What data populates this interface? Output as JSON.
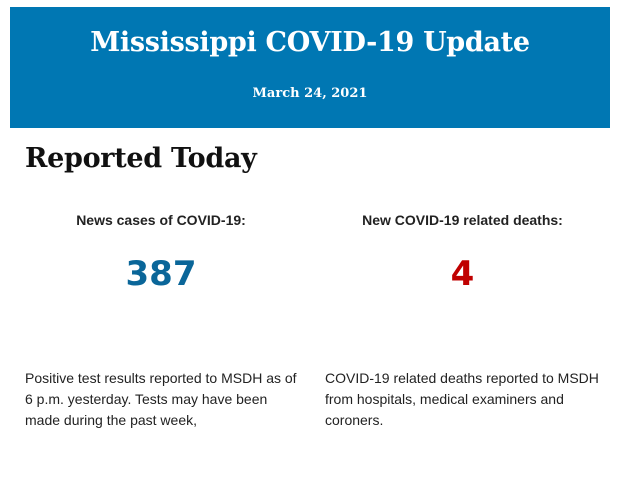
{
  "header": {
    "title": "Mississippi COVID-19 Update",
    "date": "March 24, 2021",
    "background": "#0077b3"
  },
  "section_title": "Reported Today",
  "cases": {
    "label": "News cases of COVID-19:",
    "value": "387",
    "color": "#0a6699",
    "description": "Positive test results reported to MSDH as of 6 p.m. yesterday. Tests may have been made during the past week,"
  },
  "deaths": {
    "label": "New COVID-19 related deaths:",
    "value": "4",
    "color": "#c00000",
    "description": "COVID-19 related deaths reported to MSDH from hospitals, medical examiners and coroners."
  }
}
